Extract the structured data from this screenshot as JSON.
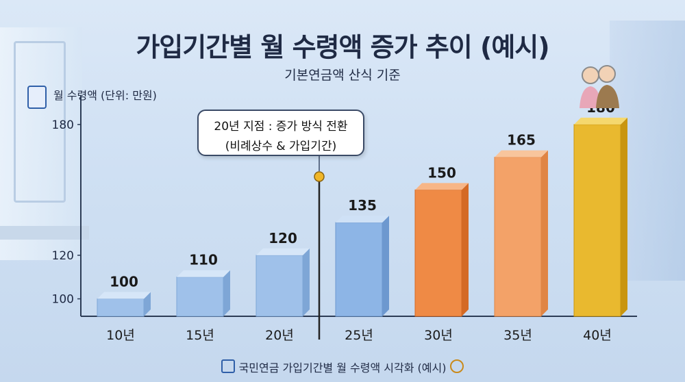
{
  "header": {
    "title": "가입기간별 월 수령액 증가 추이 (예시)",
    "subtitle": "기본연금액 산식 기준"
  },
  "callout": {
    "line1": "20년 지점 : 증가 방식 전환",
    "line2": "(비례상수 & 가입기간)"
  },
  "footer": {
    "text": "국민연금 가입기간별 월 수령액 시각화 (예시)"
  },
  "chart_data": {
    "type": "bar",
    "title": "가입기간별 월 수령액 증가 추이 (예시)",
    "subtitle": "기본연금액 산식 기준",
    "ylabel": "월 수령액 (단위: 만원)",
    "xlabel": "",
    "categories": [
      "10년",
      "15년",
      "20년",
      "25년",
      "30년",
      "35년",
      "40년"
    ],
    "values": [
      100,
      110,
      120,
      135,
      150,
      165,
      180
    ],
    "yticks": [
      100,
      120,
      180
    ],
    "ylim": [
      92,
      190
    ],
    "grid": false,
    "legend": "none",
    "annotations": [
      {
        "at_category": "20년",
        "after": true,
        "text": "20년 지점 : 증가 방식 전환 (비례상수 & 가입기간)"
      }
    ],
    "bar_colors": [
      "#9fc1ea",
      "#9fc1ea",
      "#9fc1ea",
      "#8db5e6",
      "#ef8a45",
      "#f3a268",
      "#e9b92f"
    ],
    "bar_side_colors": [
      "#7ea6d6",
      "#7ea6d6",
      "#7ea6d6",
      "#6d98cf",
      "#d46a25",
      "#e08544",
      "#c9950f"
    ],
    "bar_top_colors": [
      "#d6e6f8",
      "#d6e6f8",
      "#d6e6f8",
      "#cfe1f6",
      "#f7b687",
      "#f8c59c",
      "#f5d86e"
    ]
  }
}
